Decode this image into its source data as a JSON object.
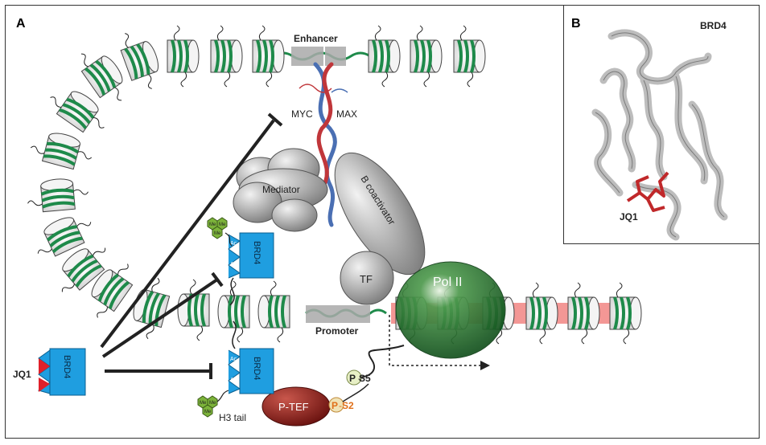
{
  "panels": {
    "a_label": "A",
    "b_label": "B"
  },
  "labels": {
    "enhancer": "Enhancer",
    "promoter": "Promoter",
    "myc": "MYC",
    "max": "MAX",
    "mediator": "Mediator",
    "b_coactivator": "B coactivator",
    "tf": "TF",
    "pol2": "Pol II",
    "brd4": "BRD4",
    "jq1": "JQ1",
    "ac": "Ac",
    "me": "Me",
    "h3_tail": "H3 tail",
    "ptef": "P-TEF",
    "p_s5": "P-S5",
    "p_s2": "P-S2",
    "p": "P",
    "s5": "S5",
    "s2": "S2"
  },
  "panel_b": {
    "brd4": "BRD4",
    "jq1": "JQ1"
  },
  "colors": {
    "nucleosome_band": "#1e8a4a",
    "brd4_blue": "#1f9ee0",
    "jq1_red": "#e0202a",
    "pol2_green": "#1a6b2a",
    "ptef_red": "#8a1e1a",
    "gray_complex": "#9a9a9a",
    "inhibitor": "#222222",
    "acetyl_green": "#7cb33a"
  }
}
